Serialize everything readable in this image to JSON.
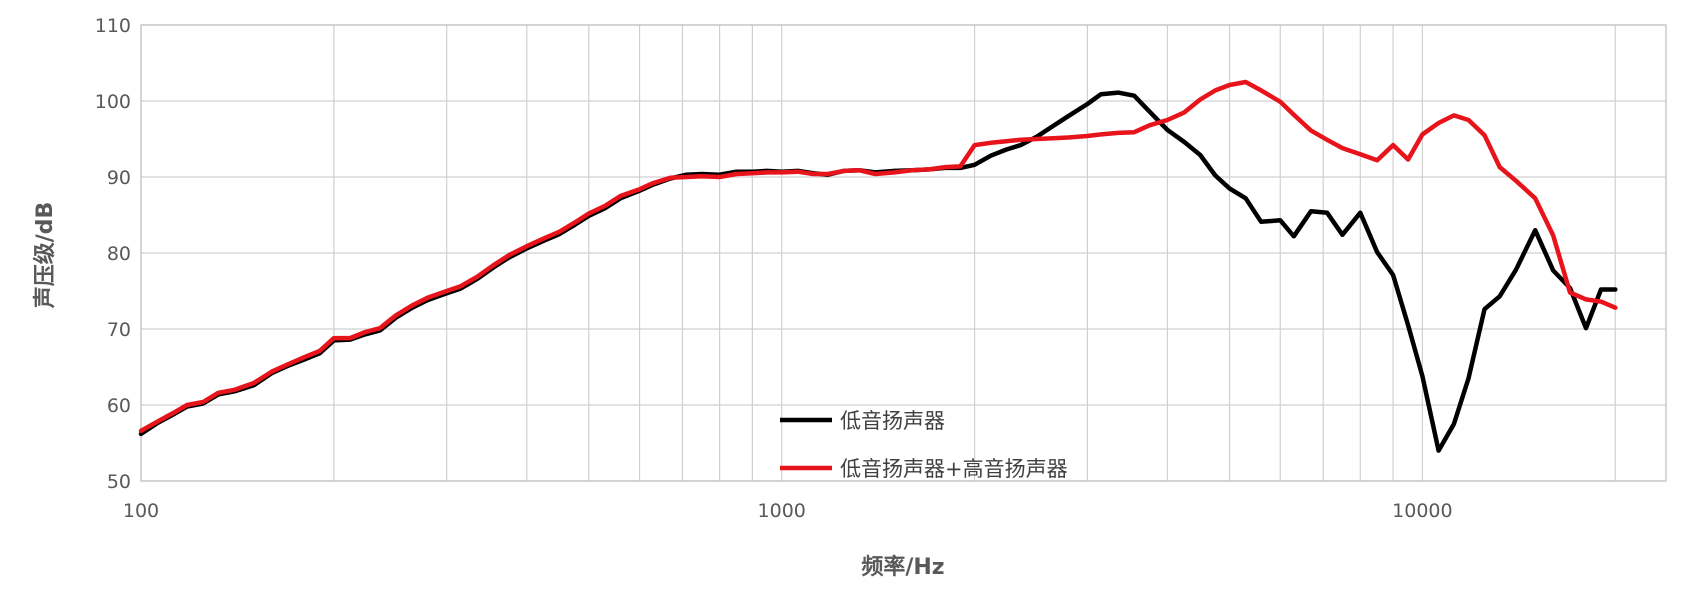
{
  "chart_data": {
    "type": "line",
    "title": "",
    "xlabel": "频率/Hz",
    "ylabel": "声压级/dB",
    "xscale": "log",
    "xlim": [
      100,
      24000
    ],
    "ylim": [
      50,
      110
    ],
    "x_ticks": [
      100,
      1000,
      10000
    ],
    "x_tick_labels": [
      "100",
      "1000",
      "10000"
    ],
    "y_ticks": [
      50,
      60,
      70,
      80,
      90,
      100,
      110
    ],
    "y_tick_labels": [
      "50",
      "60",
      "70",
      "80",
      "90",
      "100",
      "110"
    ],
    "grid": true,
    "legend_position": "bottom-center",
    "series": [
      {
        "name": "低音扬声器",
        "color": "#000000",
        "x": [
          100,
          106,
          112,
          118,
          125,
          132,
          140,
          150,
          160,
          170,
          180,
          190,
          200,
          212,
          224,
          236,
          250,
          265,
          280,
          300,
          315,
          335,
          355,
          375,
          400,
          425,
          450,
          475,
          500,
          530,
          560,
          600,
          630,
          670,
          710,
          750,
          800,
          850,
          900,
          950,
          1000,
          1060,
          1120,
          1180,
          1250,
          1320,
          1400,
          1500,
          1600,
          1700,
          1800,
          1900,
          2000,
          2120,
          2240,
          2360,
          2500,
          2650,
          2800,
          3000,
          3150,
          3350,
          3550,
          3750,
          4000,
          4250,
          4500,
          4750,
          5000,
          5300,
          5600,
          6000,
          6300,
          6700,
          7100,
          7500,
          8000,
          8500,
          9000,
          9500,
          10000,
          10600,
          11200,
          11800,
          12500,
          13200,
          14000,
          15000,
          16000,
          17000,
          18000,
          19000,
          20000
        ],
        "y": [
          56.2,
          57.6,
          58.7,
          59.8,
          60.2,
          61.4,
          61.8,
          62.6,
          64.2,
          65.2,
          66.0,
          66.8,
          68.5,
          68.6,
          69.3,
          69.8,
          71.5,
          72.8,
          73.8,
          74.7,
          75.3,
          76.6,
          78.1,
          79.4,
          80.6,
          81.6,
          82.5,
          83.7,
          84.9,
          85.9,
          87.2,
          88.2,
          89.0,
          89.8,
          90.3,
          90.4,
          90.3,
          90.7,
          90.7,
          90.8,
          90.7,
          90.8,
          90.5,
          90.3,
          90.8,
          90.9,
          90.6,
          90.8,
          90.9,
          91.0,
          91.2,
          91.2,
          91.6,
          92.8,
          93.6,
          94.2,
          95.3,
          96.7,
          98.0,
          99.6,
          100.9,
          101.1,
          100.7,
          98.6,
          96.2,
          94.6,
          92.9,
          90.2,
          88.5,
          87.2,
          84.1,
          84.3,
          82.2,
          85.5,
          85.3,
          82.4,
          85.3,
          80.1,
          77.1,
          70.5,
          63.8,
          54.0,
          57.5,
          63.5,
          72.6,
          74.3,
          77.8,
          83.0,
          77.7,
          75.4,
          70.1,
          75.2,
          75.2
        ]
      },
      {
        "name": "低音扬声器+高音扬声器",
        "color": "#e8141c",
        "x": [
          100,
          106,
          112,
          118,
          125,
          132,
          140,
          150,
          160,
          170,
          180,
          190,
          200,
          212,
          224,
          236,
          250,
          265,
          280,
          300,
          315,
          335,
          355,
          375,
          400,
          425,
          450,
          475,
          500,
          530,
          560,
          600,
          630,
          670,
          710,
          750,
          800,
          850,
          900,
          950,
          1000,
          1060,
          1120,
          1180,
          1250,
          1320,
          1400,
          1500,
          1600,
          1700,
          1800,
          1900,
          2000,
          2120,
          2240,
          2360,
          2500,
          2650,
          2800,
          3000,
          3150,
          3350,
          3550,
          3750,
          4000,
          4250,
          4500,
          4750,
          5000,
          5300,
          5600,
          6000,
          6300,
          6700,
          7100,
          7500,
          8000,
          8500,
          9000,
          9500,
          10000,
          10600,
          11200,
          11800,
          12500,
          13200,
          14000,
          15000,
          16000,
          17000,
          18000,
          19000,
          20000
        ],
        "y": [
          56.6,
          57.8,
          58.9,
          60.0,
          60.4,
          61.6,
          62.0,
          62.9,
          64.4,
          65.4,
          66.3,
          67.1,
          68.8,
          68.8,
          69.6,
          70.1,
          71.8,
          73.1,
          74.1,
          75.0,
          75.6,
          76.9,
          78.4,
          79.7,
          80.9,
          81.9,
          82.8,
          84.0,
          85.2,
          86.2,
          87.5,
          88.4,
          89.2,
          89.9,
          90.0,
          90.1,
          90.0,
          90.4,
          90.5,
          90.6,
          90.6,
          90.7,
          90.4,
          90.4,
          90.8,
          90.9,
          90.4,
          90.6,
          90.9,
          91.0,
          91.3,
          91.4,
          94.2,
          94.5,
          94.7,
          94.9,
          95.0,
          95.1,
          95.2,
          95.4,
          95.6,
          95.8,
          95.9,
          96.8,
          97.5,
          98.5,
          100.2,
          101.4,
          102.1,
          102.5,
          101.4,
          99.9,
          98.2,
          96.1,
          94.9,
          93.8,
          93.0,
          92.2,
          94.2,
          92.3,
          95.6,
          97.1,
          98.1,
          97.5,
          95.5,
          91.3,
          89.5,
          87.2,
          82.3,
          74.8,
          73.9,
          73.6,
          72.8
        ]
      }
    ]
  }
}
